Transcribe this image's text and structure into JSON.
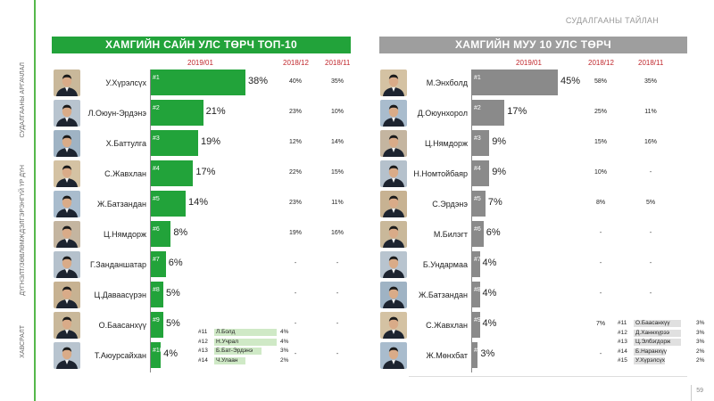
{
  "header": {
    "report_title": "СУДАЛГААНЫ ТАЙЛАН",
    "page_number": "59"
  },
  "sidebar": {
    "sections": [
      "СУДАЛГААНЫ АРГАЧЛАЛ",
      "ДЭЛГЭРЭНГҮЙ ҮР ДҮН",
      "ДҮГНЭЛТ/ЗӨВЛӨМЖ",
      "ХАВСРАЛТ"
    ],
    "accent_color": "#55b84a"
  },
  "chart_data": [
    {
      "type": "bar",
      "title": "ХАМГИЙН САЙН УЛС ТӨРЧ ТОП-10",
      "color": "#22a33a",
      "periods": [
        "2019/01",
        "2018/12",
        "2018/11"
      ],
      "rows": [
        {
          "rank": "#1",
          "name": "У.Хүрэлсүх",
          "value": 38,
          "label": "38%",
          "p2018_12": "40%",
          "p2018_11": "35%"
        },
        {
          "rank": "#2",
          "name": "Л.Оюун-Эрдэнэ",
          "value": 21,
          "label": "21%",
          "p2018_12": "23%",
          "p2018_11": "10%"
        },
        {
          "rank": "#3",
          "name": "Х.Баттулга",
          "value": 19,
          "label": "19%",
          "p2018_12": "12%",
          "p2018_11": "14%"
        },
        {
          "rank": "#4",
          "name": "С.Жавхлан",
          "value": 17,
          "label": "17%",
          "p2018_12": "22%",
          "p2018_11": "15%"
        },
        {
          "rank": "#5",
          "name": "Ж.Батзандан",
          "value": 14,
          "label": "14%",
          "p2018_12": "23%",
          "p2018_11": "11%"
        },
        {
          "rank": "#6",
          "name": "Ц.Нямдорж",
          "value": 8,
          "label": "8%",
          "p2018_12": "19%",
          "p2018_11": "16%"
        },
        {
          "rank": "#7",
          "name": "Г.Занданшатар",
          "value": 6,
          "label": "6%",
          "p2018_12": "-",
          "p2018_11": "-"
        },
        {
          "rank": "#8",
          "name": "Ц.Даваасүрэн",
          "value": 5,
          "label": "5%",
          "p2018_12": "-",
          "p2018_11": "-"
        },
        {
          "rank": "#9",
          "name": "О.Баасанхүү",
          "value": 5,
          "label": "5%",
          "p2018_12": "-",
          "p2018_11": "-"
        },
        {
          "rank": "#10",
          "name": "Т.Аюурсайхан",
          "value": 4,
          "label": "4%",
          "p2018_12": "-",
          "p2018_11": "-"
        }
      ],
      "extra": [
        {
          "rank": "#11",
          "name": "Л.Болд",
          "value": 4,
          "label": "4%"
        },
        {
          "rank": "#12",
          "name": "Н.Учрал",
          "value": 4,
          "label": "4%"
        },
        {
          "rank": "#13",
          "name": "Б.Бат-Эрдэнэ",
          "value": 3,
          "label": "3%"
        },
        {
          "rank": "#14",
          "name": "Ч.Улаан",
          "value": 2,
          "label": "2%"
        }
      ]
    },
    {
      "type": "bar",
      "title": "ХАМГИЙН МУУ 10 УЛС ТӨРЧ",
      "color": "#8a8a8a",
      "periods": [
        "2019/01",
        "2018/12",
        "2018/11"
      ],
      "rows": [
        {
          "rank": "#1",
          "name": "М.Энхболд",
          "value": 45,
          "label": "45%",
          "p2018_12": "58%",
          "p2018_11": "35%"
        },
        {
          "rank": "#2",
          "name": "Д.Оюунхорол",
          "value": 17,
          "label": "17%",
          "p2018_12": "25%",
          "p2018_11": "11%"
        },
        {
          "rank": "#3",
          "name": "Ц.Нямдорж",
          "value": 9,
          "label": "9%",
          "p2018_12": "15%",
          "p2018_11": "16%"
        },
        {
          "rank": "#4",
          "name": "Н.Номтойбаяр",
          "value": 9,
          "label": "9%",
          "p2018_12": "10%",
          "p2018_11": "-"
        },
        {
          "rank": "#5",
          "name": "С.Эрдэнэ",
          "value": 7,
          "label": "7%",
          "p2018_12": "8%",
          "p2018_11": "5%"
        },
        {
          "rank": "#6",
          "name": "М.Билэгт",
          "value": 6,
          "label": "6%",
          "p2018_12": "-",
          "p2018_11": "-"
        },
        {
          "rank": "#7",
          "name": "Б.Ундармаа",
          "value": 4,
          "label": "4%",
          "p2018_12": "-",
          "p2018_11": "-"
        },
        {
          "rank": "#8",
          "name": "Ж.Батзандан",
          "value": 4,
          "label": "4%",
          "p2018_12": "-",
          "p2018_11": "-"
        },
        {
          "rank": "#9",
          "name": "С.Жавхлан",
          "value": 4,
          "label": "4%",
          "p2018_12": "7%",
          "p2018_11": ""
        },
        {
          "rank": "#10",
          "name": "Ж.Мөнхбат",
          "value": 3,
          "label": "3%",
          "p2018_12": "-",
          "p2018_11": ""
        }
      ],
      "extra": [
        {
          "rank": "#11",
          "name": "О.Баасанхүү",
          "value": 3,
          "label": "3%"
        },
        {
          "rank": "#12",
          "name": "Д.Ханнхүрээ",
          "value": 3,
          "label": "3%"
        },
        {
          "rank": "#13",
          "name": "Ц.Элбэгдорж",
          "value": 3,
          "label": "3%"
        },
        {
          "rank": "#14",
          "name": "Б.Наранхүү",
          "value": 2,
          "label": "2%"
        },
        {
          "rank": "#15",
          "name": "У.Хүрэлсүх",
          "value": 2,
          "label": "2%"
        }
      ]
    }
  ]
}
